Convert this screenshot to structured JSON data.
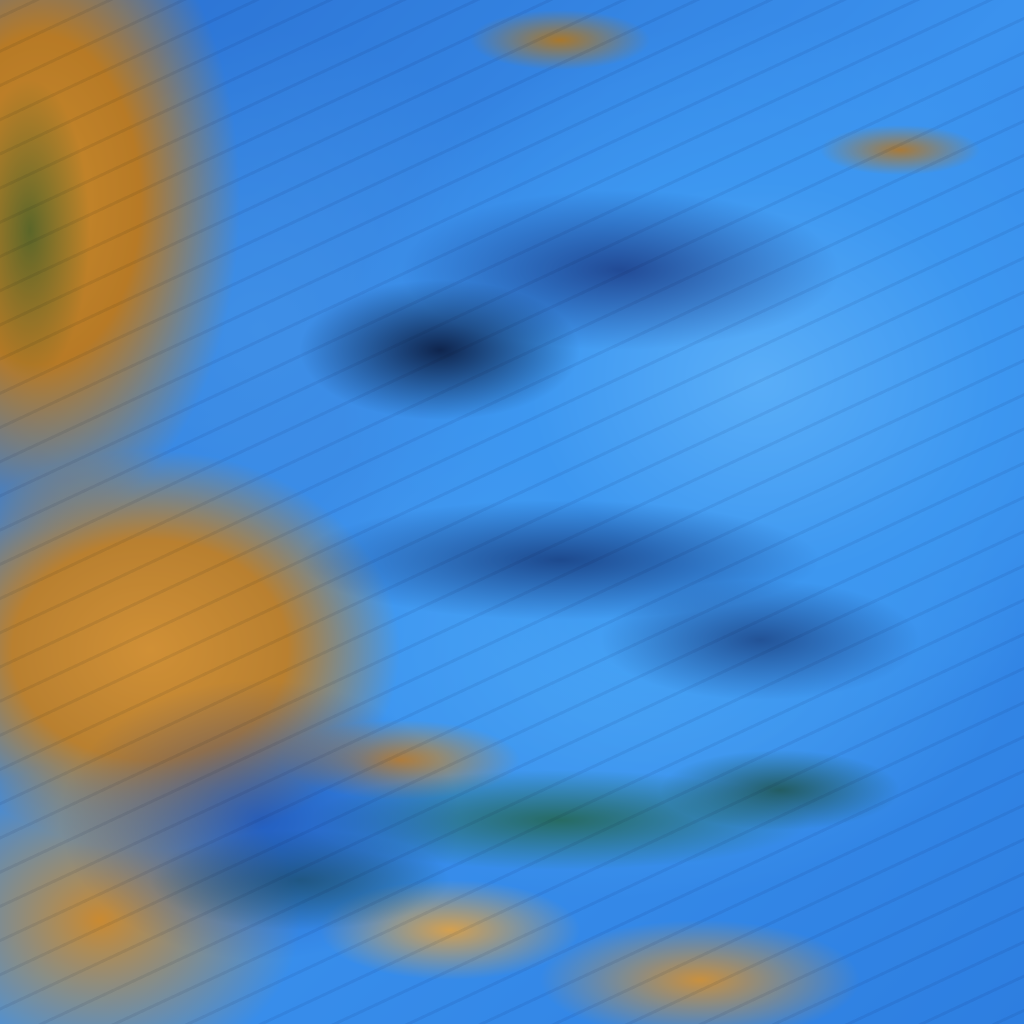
{
  "image": {
    "colors": {
      "cloud_blue": "#3d97f0",
      "land_orange": "#c98a2c",
      "shadow_navy": "#0a193c",
      "vegetation_green": "#1e5a28"
    }
  }
}
